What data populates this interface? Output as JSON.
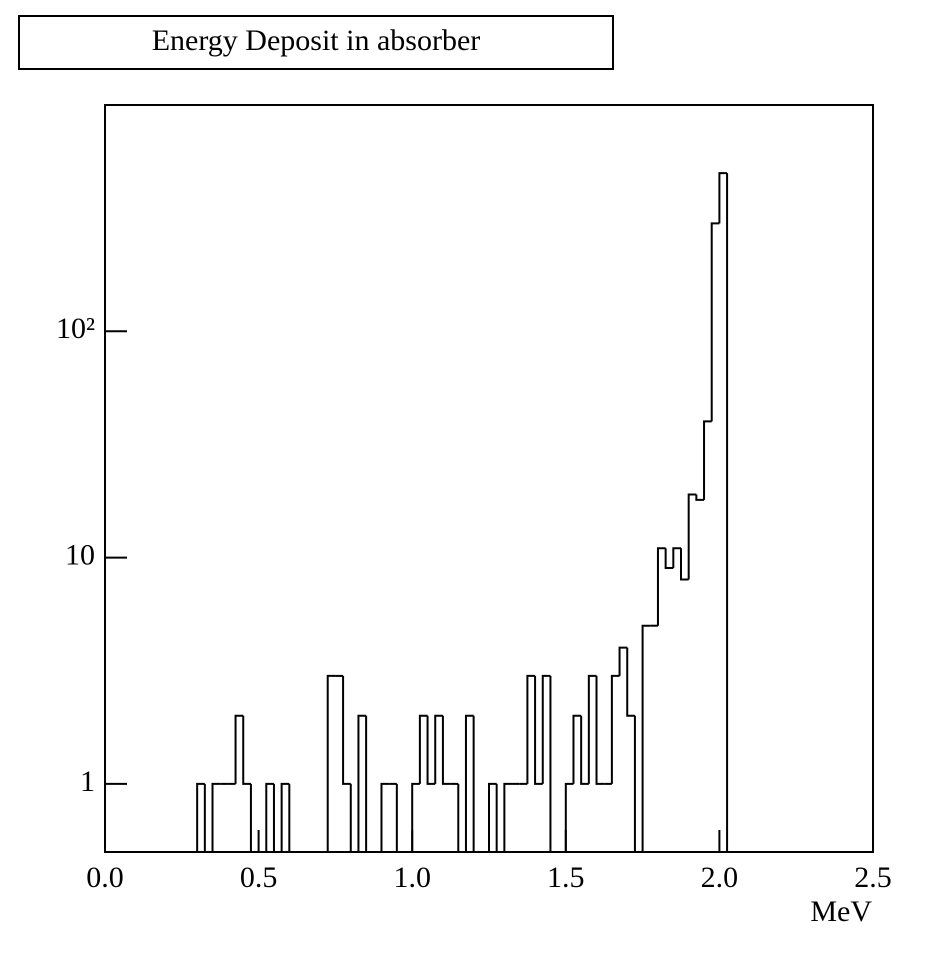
{
  "chart_data": {
    "type": "histogram",
    "title": "Energy Deposit in absorber",
    "x_label": "MeV",
    "bins": [
      0,
      0.025,
      0.05,
      0.075,
      0.1,
      0.125,
      0.15,
      0.175,
      0.2,
      0.225,
      0.25,
      0.275,
      0.3,
      0.325,
      0.35,
      0.375,
      0.4,
      0.425,
      0.45,
      0.475,
      0.5,
      0.525,
      0.55,
      0.575,
      0.6,
      0.625,
      0.65,
      0.675,
      0.7,
      0.725,
      0.75,
      0.775,
      0.8,
      0.825,
      0.85,
      0.875,
      0.9,
      0.925,
      0.95,
      0.975,
      1,
      1.025,
      1.05,
      1.075,
      1.1,
      1.125,
      1.15,
      1.175,
      1.2,
      1.225,
      1.25,
      1.275,
      1.3,
      1.325,
      1.35,
      1.375,
      1.4,
      1.425,
      1.45,
      1.475,
      1.5,
      1.525,
      1.55,
      1.575,
      1.6,
      1.625,
      1.65,
      1.675,
      1.7,
      1.725,
      1.75,
      1.775,
      1.8,
      1.825,
      1.85,
      1.875,
      1.9,
      1.925,
      1.95,
      1.975,
      2,
      2.025,
      2.05,
      2.075,
      2.1,
      2.125,
      2.15,
      2.175,
      2.2,
      2.225,
      2.25,
      2.275,
      2.3,
      2.325,
      2.35,
      2.375,
      2.4,
      2.425,
      2.45,
      2.475,
      2.5
    ],
    "values": [
      0,
      0,
      0,
      0,
      0,
      0,
      0,
      0,
      0,
      0,
      0,
      0,
      1,
      0,
      1,
      1,
      1,
      2,
      1,
      0,
      0,
      1,
      0,
      1,
      0,
      0,
      0,
      0,
      0,
      3,
      3,
      1,
      0,
      2,
      0,
      0,
      1,
      1,
      0,
      0,
      1,
      2,
      1,
      2,
      1,
      1,
      0,
      2,
      0,
      0,
      1,
      0,
      1,
      1,
      1,
      3,
      1,
      3,
      0,
      0,
      1,
      2,
      1,
      3,
      1,
      1,
      3,
      4,
      2,
      0,
      5,
      5,
      11,
      9,
      11,
      8,
      19,
      18,
      40,
      300,
      500,
      0,
      0,
      0,
      0,
      0,
      0,
      0,
      0,
      0,
      0,
      0,
      0,
      0,
      0,
      0,
      0,
      0,
      0,
      0
    ],
    "color": "#000000",
    "xlim": [
      0,
      2.5
    ],
    "xticks": [
      {
        "value": 0,
        "label": "0.0"
      },
      0.5,
      {
        "value": 1,
        "label": "1.0"
      },
      1.5,
      {
        "value": 2,
        "label": "2.0"
      },
      2.5
    ],
    "ylim": [
      0.5,
      1000
    ],
    "yticks": [
      1,
      10,
      {
        "value": 100,
        "label": "10²"
      }
    ],
    "log_y": true
  }
}
